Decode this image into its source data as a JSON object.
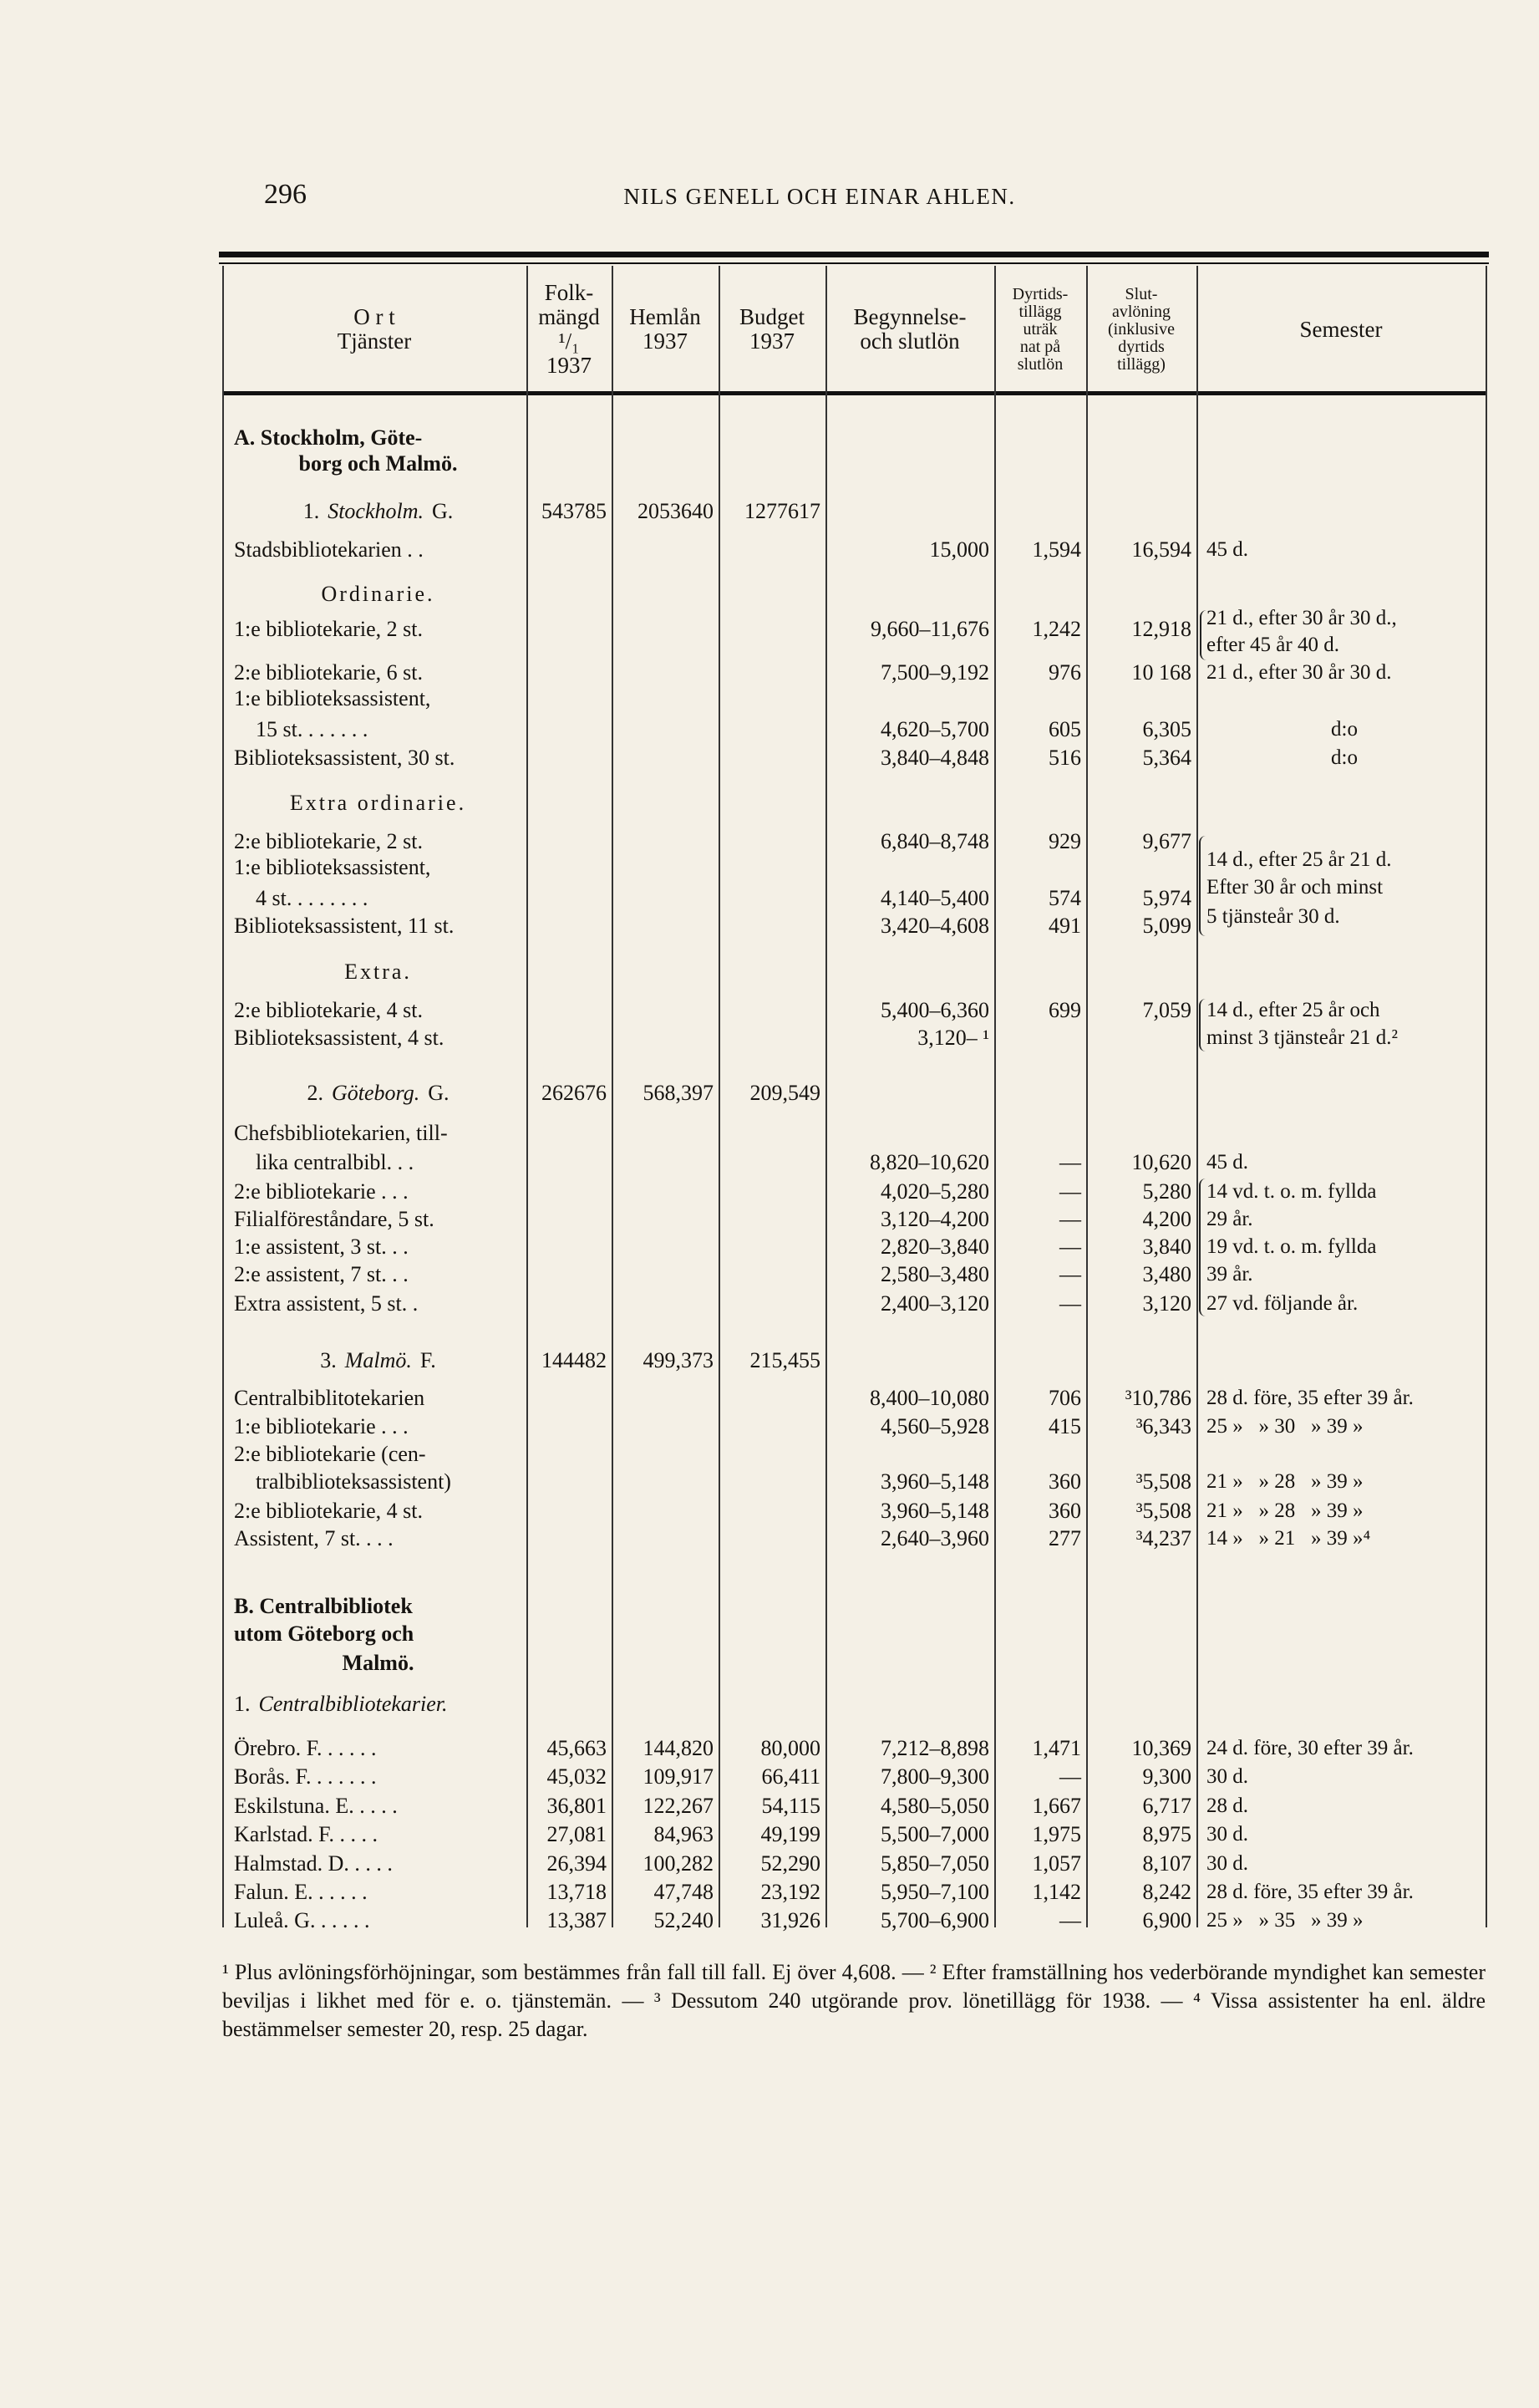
{
  "header": {
    "page_number": "296",
    "running_title": "NILS GENELL OCH EINAR AHLEN."
  },
  "columns": {
    "ort": "O r t\nTjänster",
    "folkmangd": "Folk-\nmängd\n¹/₁\n1937",
    "hemlan": "Hemlån\n1937",
    "budget": "Budget\n1937",
    "lon": "Begynnelse-\noch slutlön",
    "dyrtid": "Dyrtids-\ntillägg\nuträk\nnat på\nslutlön",
    "slut": "Slut-\navlöning\n(inklusive\ndyrtids\ntillägg)",
    "semester": "Semester"
  },
  "rows": [
    {
      "label": "A. Stockholm, Göte-",
      "style": "section"
    },
    {
      "label": "borg och Malmö.",
      "style": "section-center"
    },
    {
      "num": "1.",
      "city": "Stockholm.",
      "code": "G.",
      "folk": "543785",
      "hemlan": "2053640",
      "budget": "1277617"
    },
    {
      "label": "Stadsbibliotekarien . .",
      "lon": "15,000",
      "dyr": "1,594",
      "slut": "16,594",
      "sem": "45 d."
    },
    {
      "label": "Ordinarie.",
      "style": "heading"
    },
    {
      "sem": "21 d., efter 30 år 30 d.,"
    },
    {
      "label": "1:e bibliotekarie, 2 st.",
      "lon": "9,660–11,676",
      "dyr": "1,242",
      "slut": "12,918"
    },
    {
      "sem": "efter 45 år 40 d."
    },
    {
      "label": "2:e bibliotekarie, 6 st.",
      "lon": "7,500–9,192",
      "dyr": "976",
      "slut": "10 168",
      "sem": "21 d., efter 30 år 30 d."
    },
    {
      "label": "1:e biblioteksassistent,"
    },
    {
      "label": "15 st. . . . . . .",
      "style": "indent",
      "lon": "4,620–5,700",
      "dyr": "605",
      "slut": "6,305",
      "sem": "d:o",
      "sem_center": true
    },
    {
      "label": "Biblioteksassistent, 30 st.",
      "lon": "3,840–4,848",
      "dyr": "516",
      "slut": "5,364",
      "sem": "d:o",
      "sem_center": true
    },
    {
      "label": "Extra ordinarie.",
      "style": "heading"
    },
    {
      "label": "2:e bibliotekarie, 2 st.",
      "lon": "6,840–8,748",
      "dyr": "929",
      "slut": "9,677"
    },
    {
      "sem": "14 d., efter 25 år 21 d."
    },
    {
      "label": "1:e biblioteksassistent,"
    },
    {
      "sem": "Efter 30 år och minst"
    },
    {
      "label": "4 st. . . . . . . .",
      "style": "indent",
      "lon": "4,140–5,400",
      "dyr": "574",
      "slut": "5,974"
    },
    {
      "sem": "5 tjänsteår 30 d."
    },
    {
      "label": "Biblioteksassistent, 11 st.",
      "lon": "3,420–4,608",
      "dyr": "491",
      "slut": "5,099"
    },
    {
      "label": "Extra.",
      "style": "heading"
    },
    {
      "label": "2:e bibliotekarie, 4 st.",
      "lon": "5,400–6,360",
      "dyr": "699",
      "slut": "7,059",
      "sem": "14 d., efter 25 år och"
    },
    {
      "label": "Biblioteksassistent, 4 st.",
      "lon": "3,120– ¹",
      "sem": "minst 3 tjänsteår 21 d.²"
    },
    {
      "num": "2.",
      "city": "Göteborg.",
      "code": "G.",
      "folk": "262676",
      "hemlan": "568,397",
      "budget": "209,549"
    },
    {
      "label": "Chefsbibliotekarien, till-"
    },
    {
      "label": "lika centralbibl. . .",
      "style": "indent",
      "lon": "8,820–10,620",
      "dyr": "—",
      "slut": "10,620",
      "sem": "45 d."
    },
    {
      "label": "2:e bibliotekarie . . .",
      "lon": "4,020–5,280",
      "dyr": "—",
      "slut": "5,280",
      "sem": "14 vd. t. o. m. fyllda"
    },
    {
      "label": "Filialföreståndare, 5 st.",
      "lon": "3,120–4,200",
      "dyr": "—",
      "slut": "4,200",
      "sem": "29 år."
    },
    {
      "label": "1:e assistent, 3 st. . .",
      "lon": "2,820–3,840",
      "dyr": "—",
      "slut": "3,840",
      "sem": "19 vd. t. o. m. fyllda"
    },
    {
      "label": "2:e assistent, 7 st. . .",
      "lon": "2,580–3,480",
      "dyr": "—",
      "slut": "3,480",
      "sem": "39 år."
    },
    {
      "label": "Extra assistent, 5 st. .",
      "lon": "2,400–3,120",
      "dyr": "—",
      "slut": "3,120",
      "sem": "27 vd. följande år."
    },
    {
      "num": "3.",
      "city": "Malmö.",
      "code": "F.",
      "folk": "144482",
      "hemlan": "499,373",
      "budget": "215,455"
    },
    {
      "label": "Centralbiblitotekarien",
      "lon": "8,400–10,080",
      "dyr": "706",
      "slut": "³10,786",
      "sem": "28 d. före, 35 efter 39 år."
    },
    {
      "label": "1:e bibliotekarie . . .",
      "lon": "4,560–5,928",
      "dyr": "415",
      "slut": "³6,343",
      "sem": "25 »   » 30   » 39 »"
    },
    {
      "label": "2:e bibliotekarie (cen-"
    },
    {
      "label": "tralbiblioteksassistent)",
      "style": "indent",
      "lon": "3,960–5,148",
      "dyr": "360",
      "slut": "³5,508",
      "sem": "21 »   » 28   » 39 »"
    },
    {
      "label": "2:e bibliotekarie, 4 st.",
      "lon": "3,960–5,148",
      "dyr": "360",
      "slut": "³5,508",
      "sem": "21 »   » 28   » 39 »"
    },
    {
      "label": "Assistent, 7 st. . . .",
      "lon": "2,640–3,960",
      "dyr": "277",
      "slut": "³4,237",
      "sem": "14 »   » 21   » 39 »⁴"
    },
    {
      "label": "B. Centralbibliotek",
      "style": "section"
    },
    {
      "label": "utom Göteborg och",
      "style": "section"
    },
    {
      "label": "Malmö.",
      "style": "section-center"
    },
    {
      "num": "1.",
      "city": "Centralbibliotekarier.",
      "style": "left"
    },
    {
      "label": "Örebro. F. . . . . .",
      "folk": "45,663",
      "hemlan": "144,820",
      "budget": "80,000",
      "lon": "7,212–8,898",
      "dyr": "1,471",
      "slut": "10,369",
      "sem": "24 d. före, 30 efter 39 år."
    },
    {
      "label": "Borås. F. . . . . . .",
      "folk": "45,032",
      "hemlan": "109,917",
      "budget": "66,411",
      "lon": "7,800–9,300",
      "dyr": "—",
      "slut": "9,300",
      "sem": "30 d."
    },
    {
      "label": "Eskilstuna. E. . . . .",
      "folk": "36,801",
      "hemlan": "122,267",
      "budget": "54,115",
      "lon": "4,580–5,050",
      "dyr": "1,667",
      "slut": "6,717",
      "sem": "28 d."
    },
    {
      "label": "Karlstad. F. . . . .",
      "folk": "27,081",
      "hemlan": "84,963",
      "budget": "49,199",
      "lon": "5,500–7,000",
      "dyr": "1,975",
      "slut": "8,975",
      "sem": "30 d."
    },
    {
      "label": "Halmstad. D. . . . .",
      "folk": "26,394",
      "hemlan": "100,282",
      "budget": "52,290",
      "lon": "5,850–7,050",
      "dyr": "1,057",
      "slut": "8,107",
      "sem": "30 d."
    },
    {
      "label": "Falun. E. . . . . .",
      "folk": "13,718",
      "hemlan": "47,748",
      "budget": "23,192",
      "lon": "5,950–7,100",
      "dyr": "1,142",
      "slut": "8,242",
      "sem": "28 d. före, 35 efter 39 år."
    },
    {
      "label": "Luleå. G. . . . . .",
      "folk": "13,387",
      "hemlan": "52,240",
      "budget": "31,926",
      "lon": "5,700–6,900",
      "dyr": "—",
      "slut": "6,900",
      "sem": "25 »   » 35   » 39 »"
    }
  ],
  "footnotes": "¹ Plus avlöningsförhöjningar, som bestämmes från fall till fall. Ej över 4,608. — ² Efter framställning hos vederbörande myndighet kan semester beviljas i likhet med för e. o. tjänstemän. — ³ Dessutom 240 utgörande prov. lönetillägg för 1938. — ⁴ Vissa assistenter ha enl. äldre bestämmelser semester 20, resp. 25 dagar."
}
